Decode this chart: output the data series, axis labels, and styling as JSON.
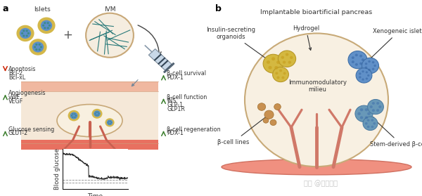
{
  "fig_width": 6.0,
  "fig_height": 2.79,
  "dpi": 100,
  "bg_color": "#ffffff",
  "panel_a_label": "a",
  "panel_b_label": "b",
  "islets_label": "Islets",
  "ivm_label": "IVM",
  "implantable_label": "Implantable bioartificial pancreas",
  "blood_glucose_label": "Blood glucose",
  "time_label": "Time",
  "skin_top_color": "#f0b8a0",
  "skin_mid_color": "#f5e8d8",
  "blood_vessel_color": "#e87060",
  "capsule_color": "#f8f0e0",
  "capsule_border": "#c8a878",
  "islet_blue": "#5b8fc9",
  "islet_yellow": "#d4b84a",
  "islet_teal": "#3d8a8a",
  "green_arrow": "#3a7d2c",
  "red_arrow": "#cc2200",
  "watermark": "知乎 @医药魔方",
  "watermark_color": "#aaaaaa"
}
